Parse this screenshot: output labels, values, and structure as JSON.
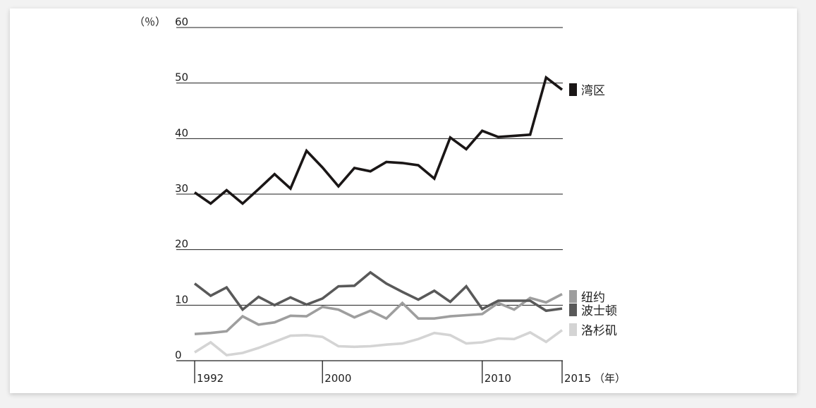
{
  "chart_data": {
    "type": "line",
    "y_unit_label": "（％）",
    "x_unit_label": "（年）",
    "ylim": [
      0,
      60
    ],
    "y_ticks": [
      0,
      10,
      20,
      30,
      40,
      50,
      60
    ],
    "x_tick_labels": [
      "1992",
      "2000",
      "2010",
      "2015"
    ],
    "x": [
      1992,
      1993,
      1994,
      1995,
      1996,
      1997,
      1998,
      1999,
      2000,
      2001,
      2002,
      2003,
      2004,
      2005,
      2006,
      2007,
      2008,
      2009,
      2010,
      2011,
      2012,
      2013,
      2014,
      2015
    ],
    "grid": "horizontal",
    "legend_position": "right, beside line ends",
    "series": [
      {
        "name": "湾区",
        "color": "#1a1616",
        "values": [
          30.3,
          28.3,
          30.7,
          28.3,
          30.9,
          33.6,
          31.0,
          37.8,
          34.8,
          31.4,
          34.7,
          34.1,
          35.8,
          35.6,
          35.2,
          32.8,
          40.2,
          38.1,
          41.4,
          40.3,
          40.5,
          40.7,
          51.0,
          48.8
        ]
      },
      {
        "name": "纽约",
        "color": "#9e9e9e",
        "values": [
          4.8,
          5.0,
          5.3,
          8.0,
          6.5,
          6.9,
          8.1,
          8.0,
          9.7,
          9.2,
          7.8,
          9.0,
          7.6,
          10.4,
          7.6,
          7.6,
          8.0,
          8.2,
          8.4,
          10.4,
          9.2,
          11.3,
          10.5,
          12.0
        ]
      },
      {
        "name": "波士顿",
        "color": "#595959",
        "values": [
          13.9,
          11.7,
          13.2,
          9.2,
          11.5,
          10.0,
          11.4,
          10.1,
          11.2,
          13.4,
          13.5,
          15.9,
          13.9,
          12.4,
          11.0,
          12.6,
          10.6,
          13.4,
          9.3,
          10.8,
          10.8,
          10.8,
          9.0,
          9.4
        ]
      },
      {
        "name": "洛杉矶",
        "color": "#d4d4d4",
        "values": [
          1.5,
          3.3,
          1.0,
          1.4,
          2.3,
          3.4,
          4.5,
          4.6,
          4.3,
          2.6,
          2.5,
          2.6,
          2.9,
          3.1,
          3.9,
          5.0,
          4.6,
          3.1,
          3.3,
          4.0,
          3.9,
          5.1,
          3.4,
          5.5
        ]
      }
    ]
  }
}
